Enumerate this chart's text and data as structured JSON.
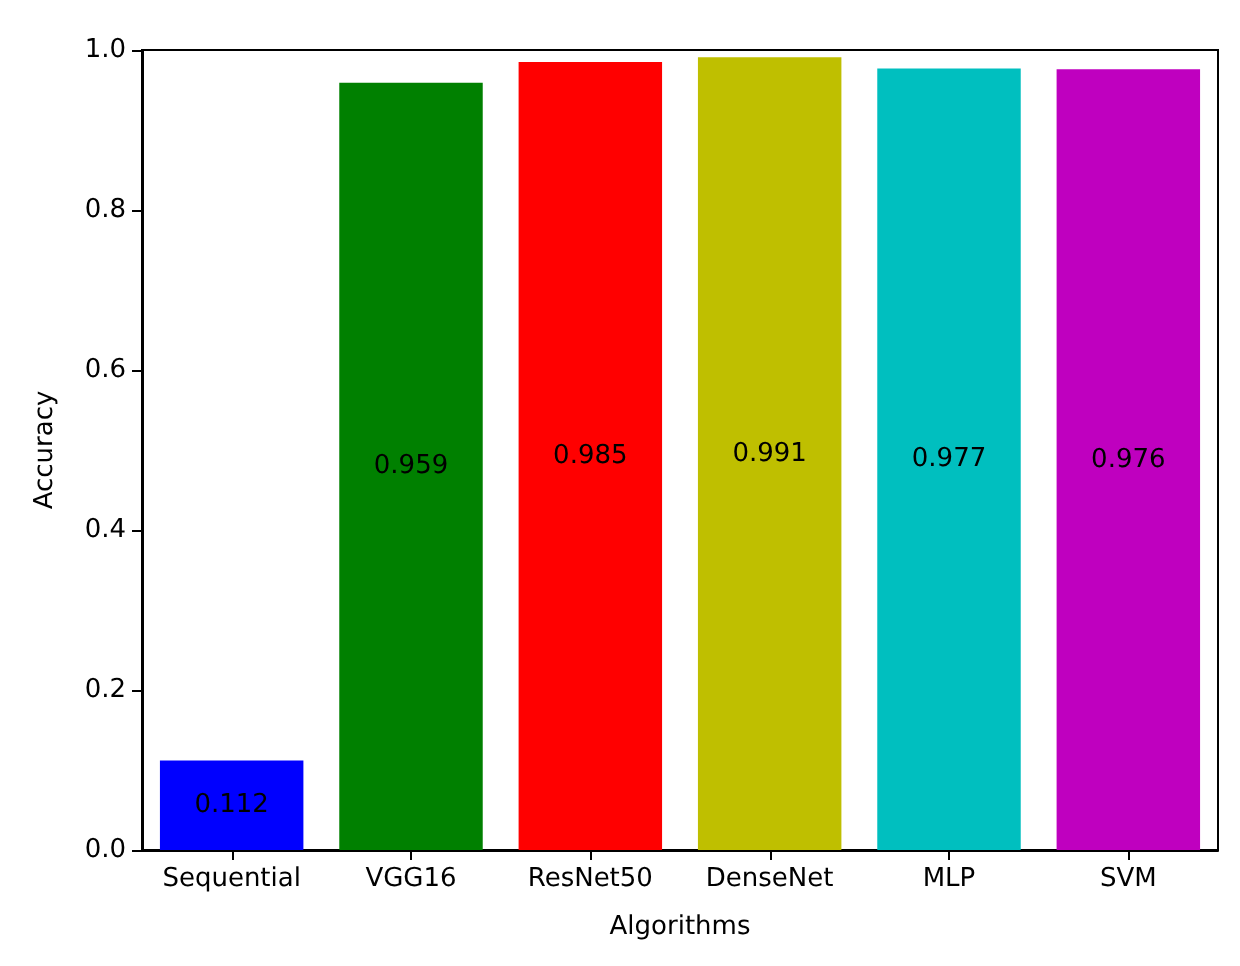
{
  "chart_data": {
    "type": "bar",
    "xlabel": "Algorithms",
    "ylabel": "Accuracy",
    "categories": [
      "Sequential",
      "VGG16",
      "ResNet50",
      "DenseNet",
      "MLP",
      "SVM"
    ],
    "values": [
      0.112,
      0.959,
      0.985,
      0.991,
      0.977,
      0.976
    ],
    "colors": [
      "#0000ff",
      "#008000",
      "#ff0000",
      "#bfbf00",
      "#00bfbf",
      "#bf00bf"
    ],
    "ylim": [
      0,
      1
    ],
    "yticks": [
      {
        "value": 0,
        "label": "0.0"
      },
      0.2,
      0.4,
      0.6,
      0.8,
      {
        "value": 1,
        "label": "1.0"
      }
    ],
    "data_labels": true,
    "grid": false
  }
}
